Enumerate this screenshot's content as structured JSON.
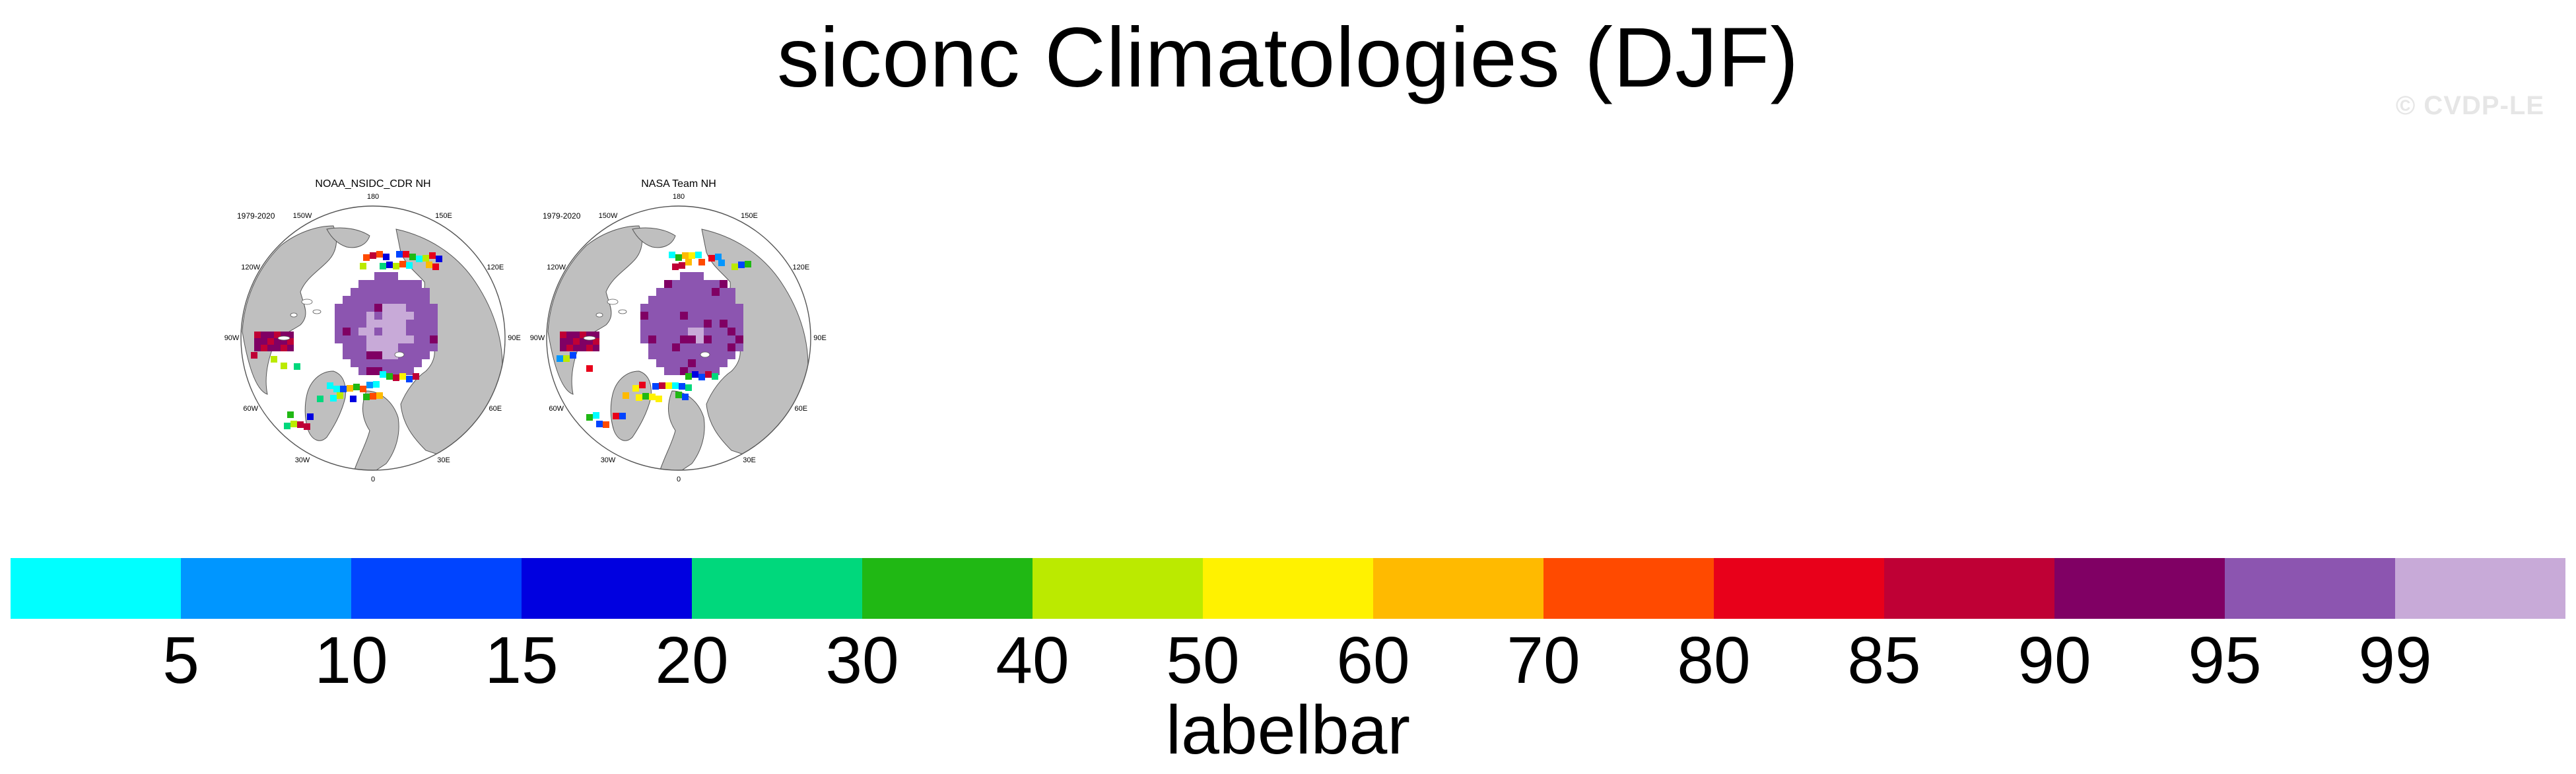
{
  "title": "siconc Climatologies (DJF)",
  "watermark": "© CVDP-LE",
  "panels": [
    {
      "title": "NOAA_NSIDC_CDR NH",
      "period": "1979-2020"
    },
    {
      "title": "NASA Team NH",
      "period": "1979-2020"
    }
  ],
  "longitude_labels": [
    "180",
    "150E",
    "120E",
    "90E",
    "60E",
    "30E",
    "0",
    "30W",
    "60W",
    "90W",
    "120W",
    "150W"
  ],
  "colors": {
    "land": "#bfbfbf",
    "ocean": "#ffffff",
    "map_outline": "#555555"
  },
  "labelbar": {
    "title": "labelbar",
    "ticks": [
      "5",
      "10",
      "15",
      "20",
      "30",
      "40",
      "50",
      "60",
      "70",
      "80",
      "85",
      "90",
      "95",
      "99"
    ],
    "colors": [
      "#00ffff",
      "#0096ff",
      "#0044ff",
      "#0000e0",
      "#00d87c",
      "#20b814",
      "#bbea00",
      "#fff200",
      "#ffba00",
      "#ff4a00",
      "#e8001a",
      "#bf0035",
      "#800064",
      "#8c55b0",
      "#c8aad8"
    ]
  }
}
